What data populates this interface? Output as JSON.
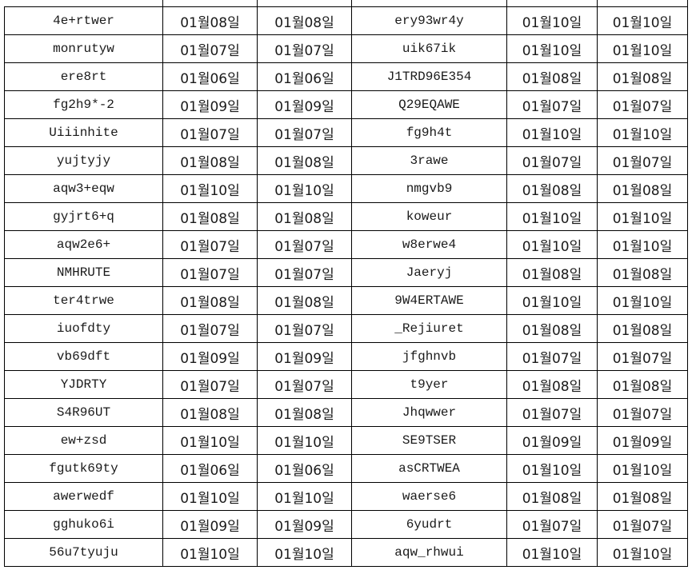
{
  "sheet": {
    "rows": [
      [
        "4e+rtwer",
        "01월08일",
        "01월08일",
        "ery93wr4y",
        "01월10일",
        "01월10일"
      ],
      [
        "monrutyw",
        "01월07일",
        "01월07일",
        "uik67ik",
        "01월10일",
        "01월10일"
      ],
      [
        "ere8rt",
        "01월06일",
        "01월06일",
        "J1TRD96E354",
        "01월08일",
        "01월08일"
      ],
      [
        "fg2h9*-2",
        "01월09일",
        "01월09일",
        "Q29EQAWE",
        "01월07일",
        "01월07일"
      ],
      [
        "Uiiinhite",
        "01월07일",
        "01월07일",
        "fg9h4t",
        "01월10일",
        "01월10일"
      ],
      [
        "yujtyjy",
        "01월08일",
        "01월08일",
        "3rawe",
        "01월07일",
        "01월07일"
      ],
      [
        "aqw3+eqw",
        "01월10일",
        "01월10일",
        "nmgvb9",
        "01월08일",
        "01월08일"
      ],
      [
        "gyjrt6+q",
        "01월08일",
        "01월08일",
        "koweur",
        "01월10일",
        "01월10일"
      ],
      [
        "aqw2e6+",
        "01월07일",
        "01월07일",
        "w8erwe4",
        "01월10일",
        "01월10일"
      ],
      [
        "NMHRUTE",
        "01월07일",
        "01월07일",
        "Jaeryj",
        "01월08일",
        "01월08일"
      ],
      [
        "ter4trwe",
        "01월08일",
        "01월08일",
        "9W4ERTAWE",
        "01월10일",
        "01월10일"
      ],
      [
        "iuofdty",
        "01월07일",
        "01월07일",
        "_Rejiuret",
        "01월08일",
        "01월08일"
      ],
      [
        "vb69dft",
        "01월09일",
        "01월09일",
        "jfghnvb",
        "01월07일",
        "01월07일"
      ],
      [
        "YJDRTY",
        "01월07일",
        "01월07일",
        "t9yer",
        "01월08일",
        "01월08일"
      ],
      [
        "S4R96UT",
        "01월08일",
        "01월08일",
        "Jhqwwer",
        "01월07일",
        "01월07일"
      ],
      [
        "ew+zsd",
        "01월10일",
        "01월10일",
        "SE9TSER",
        "01월09일",
        "01월09일"
      ],
      [
        "fgutk69ty",
        "01월06일",
        "01월06일",
        "asCRTWEA",
        "01월10일",
        "01월10일"
      ],
      [
        "awerwedf",
        "01월10일",
        "01월10일",
        "waerse6",
        "01월08일",
        "01월08일"
      ],
      [
        "gghuko6i",
        "01월09일",
        "01월09일",
        "6yudrt",
        "01월07일",
        "01월07일"
      ],
      [
        "56u7tyuju",
        "01월10일",
        "01월10일",
        "aqw_rhwui",
        "01월10일",
        "01월10일"
      ]
    ]
  }
}
